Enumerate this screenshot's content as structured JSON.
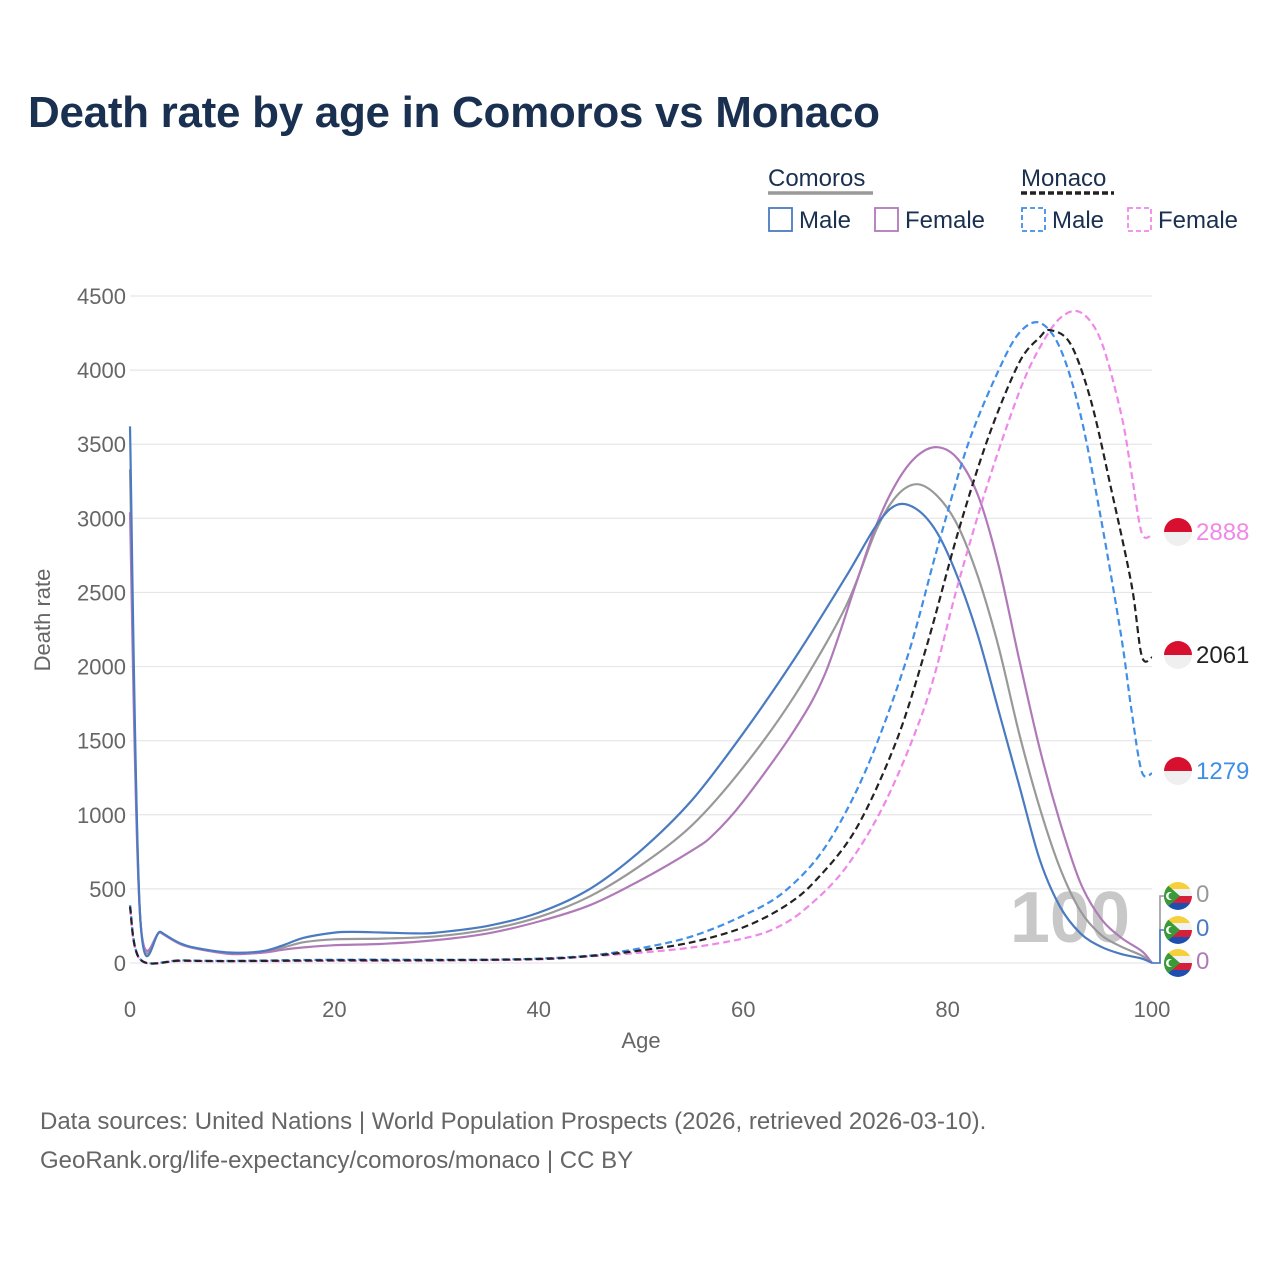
{
  "chart_data": {
    "type": "line",
    "title": "Death rate by age in Comoros vs Monaco",
    "xlabel": "Age",
    "ylabel": "Death rate",
    "xlim": [
      0,
      100
    ],
    "ylim": [
      0,
      4500
    ],
    "xticks": [
      0,
      20,
      40,
      60,
      80,
      100
    ],
    "yticks": [
      0,
      500,
      1000,
      1500,
      2000,
      2500,
      3000,
      3500,
      4000,
      4500
    ],
    "grid": true,
    "legend": {
      "groups": [
        {
          "name": "Comoros",
          "items": [
            "Male",
            "Female"
          ],
          "style": "solid"
        },
        {
          "name": "Monaco",
          "items": [
            "Male",
            "Female"
          ],
          "style": "dashed"
        }
      ]
    },
    "year_watermark": "100",
    "series": [
      {
        "name": "Comoros Male",
        "country": "Comoros",
        "sex": "Male",
        "color": "#4a7bc0",
        "dash": false,
        "points": [
          [
            0,
            3620
          ],
          [
            1,
            310
          ],
          [
            3,
            210
          ],
          [
            5,
            130
          ],
          [
            7,
            95
          ],
          [
            10,
            70
          ],
          [
            13,
            80
          ],
          [
            15,
            120
          ],
          [
            17,
            170
          ],
          [
            20,
            205
          ],
          [
            22,
            210
          ],
          [
            25,
            205
          ],
          [
            28,
            200
          ],
          [
            30,
            205
          ],
          [
            35,
            250
          ],
          [
            40,
            340
          ],
          [
            45,
            500
          ],
          [
            50,
            760
          ],
          [
            55,
            1100
          ],
          [
            60,
            1550
          ],
          [
            65,
            2050
          ],
          [
            70,
            2600
          ],
          [
            73,
            2950
          ],
          [
            75,
            3090
          ],
          [
            77,
            3060
          ],
          [
            79,
            2900
          ],
          [
            81,
            2600
          ],
          [
            83,
            2200
          ],
          [
            85,
            1700
          ],
          [
            87,
            1200
          ],
          [
            89,
            700
          ],
          [
            91,
            380
          ],
          [
            93,
            200
          ],
          [
            95,
            110
          ],
          [
            97,
            60
          ],
          [
            99,
            30
          ],
          [
            100,
            0
          ]
        ],
        "end_value": "0"
      },
      {
        "name": "Comoros Female",
        "country": "Comoros",
        "sex": "Female",
        "color": "#b07ab8",
        "dash": false,
        "points": [
          [
            0,
            3040
          ],
          [
            1,
            305
          ],
          [
            3,
            205
          ],
          [
            5,
            125
          ],
          [
            7,
            90
          ],
          [
            10,
            60
          ],
          [
            13,
            70
          ],
          [
            15,
            90
          ],
          [
            17,
            105
          ],
          [
            20,
            120
          ],
          [
            25,
            130
          ],
          [
            30,
            155
          ],
          [
            35,
            200
          ],
          [
            40,
            280
          ],
          [
            45,
            390
          ],
          [
            50,
            560
          ],
          [
            55,
            760
          ],
          [
            57,
            860
          ],
          [
            60,
            1090
          ],
          [
            65,
            1570
          ],
          [
            68,
            1950
          ],
          [
            71,
            2550
          ],
          [
            73,
            2950
          ],
          [
            75,
            3240
          ],
          [
            77,
            3420
          ],
          [
            79,
            3480
          ],
          [
            81,
            3400
          ],
          [
            83,
            3150
          ],
          [
            85,
            2680
          ],
          [
            87,
            2050
          ],
          [
            89,
            1450
          ],
          [
            91,
            950
          ],
          [
            93,
            540
          ],
          [
            95,
            300
          ],
          [
            97,
            170
          ],
          [
            99,
            80
          ],
          [
            100,
            0
          ]
        ],
        "end_value": "0"
      },
      {
        "name": "Comoros Total",
        "country": "Comoros",
        "sex": "Total",
        "color": "#999999",
        "dash": false,
        "points": [
          [
            0,
            3330
          ],
          [
            1,
            308
          ],
          [
            3,
            208
          ],
          [
            5,
            128
          ],
          [
            7,
            92
          ],
          [
            10,
            65
          ],
          [
            13,
            75
          ],
          [
            15,
            105
          ],
          [
            17,
            140
          ],
          [
            20,
            160
          ],
          [
            25,
            165
          ],
          [
            30,
            180
          ],
          [
            35,
            225
          ],
          [
            40,
            310
          ],
          [
            45,
            450
          ],
          [
            50,
            660
          ],
          [
            55,
            930
          ],
          [
            60,
            1320
          ],
          [
            65,
            1800
          ],
          [
            70,
            2400
          ],
          [
            73,
            2920
          ],
          [
            75,
            3150
          ],
          [
            77,
            3230
          ],
          [
            79,
            3150
          ],
          [
            81,
            2950
          ],
          [
            83,
            2600
          ],
          [
            85,
            2130
          ],
          [
            87,
            1550
          ],
          [
            89,
            1050
          ],
          [
            91,
            640
          ],
          [
            93,
            350
          ],
          [
            95,
            190
          ],
          [
            97,
            110
          ],
          [
            99,
            50
          ],
          [
            100,
            0
          ]
        ],
        "end_value": ""
      },
      {
        "name": "Monaco Male",
        "country": "Monaco",
        "sex": "Male",
        "color": "#3f8ee8",
        "dash": true,
        "points": [
          [
            0,
            390
          ],
          [
            1,
            25
          ],
          [
            5,
            18
          ],
          [
            10,
            15
          ],
          [
            20,
            22
          ],
          [
            30,
            22
          ],
          [
            35,
            22
          ],
          [
            40,
            30
          ],
          [
            45,
            50
          ],
          [
            50,
            100
          ],
          [
            55,
            180
          ],
          [
            60,
            320
          ],
          [
            64,
            480
          ],
          [
            68,
            780
          ],
          [
            72,
            1300
          ],
          [
            76,
            2050
          ],
          [
            79,
            2800
          ],
          [
            82,
            3500
          ],
          [
            85,
            4000
          ],
          [
            87,
            4250
          ],
          [
            89,
            4320
          ],
          [
            91,
            4150
          ],
          [
            93,
            3700
          ],
          [
            95,
            3000
          ],
          [
            97,
            2200
          ],
          [
            98,
            1700
          ],
          [
            99,
            1290
          ],
          [
            100,
            1279
          ]
        ],
        "end_value": "1279"
      },
      {
        "name": "Monaco Female",
        "country": "Monaco",
        "sex": "Female",
        "color": "#f088e8",
        "dash": true,
        "points": [
          [
            0,
            370
          ],
          [
            1,
            22
          ],
          [
            5,
            14
          ],
          [
            10,
            12
          ],
          [
            20,
            14
          ],
          [
            30,
            16
          ],
          [
            40,
            25
          ],
          [
            45,
            45
          ],
          [
            50,
            70
          ],
          [
            55,
            105
          ],
          [
            60,
            165
          ],
          [
            63,
            230
          ],
          [
            66,
            360
          ],
          [
            70,
            640
          ],
          [
            74,
            1100
          ],
          [
            78,
            1780
          ],
          [
            81,
            2550
          ],
          [
            84,
            3250
          ],
          [
            87,
            3850
          ],
          [
            89,
            4150
          ],
          [
            91,
            4350
          ],
          [
            93,
            4390
          ],
          [
            95,
            4200
          ],
          [
            97,
            3700
          ],
          [
            98,
            3300
          ],
          [
            99,
            2900
          ],
          [
            100,
            2888
          ]
        ],
        "end_value": "2888"
      },
      {
        "name": "Monaco Total",
        "country": "Monaco",
        "sex": "Total",
        "color": "#222222",
        "dash": true,
        "points": [
          [
            0,
            380
          ],
          [
            1,
            24
          ],
          [
            5,
            16
          ],
          [
            10,
            13
          ],
          [
            20,
            18
          ],
          [
            30,
            19
          ],
          [
            40,
            27
          ],
          [
            45,
            47
          ],
          [
            50,
            85
          ],
          [
            55,
            140
          ],
          [
            60,
            240
          ],
          [
            64,
            380
          ],
          [
            67,
            550
          ],
          [
            71,
            900
          ],
          [
            75,
            1500
          ],
          [
            78,
            2150
          ],
          [
            81,
            2900
          ],
          [
            84,
            3550
          ],
          [
            87,
            4050
          ],
          [
            89,
            4220
          ],
          [
            90,
            4270
          ],
          [
            92,
            4180
          ],
          [
            94,
            3800
          ],
          [
            96,
            3200
          ],
          [
            98,
            2550
          ],
          [
            99,
            2070
          ],
          [
            100,
            2061
          ]
        ],
        "end_value": "2061"
      }
    ],
    "colors": {
      "title": "#1a3050",
      "axis_text": "#666666",
      "grid": "#e6e6e6",
      "watermark": "#c8c8c8"
    }
  },
  "footer": {
    "line1": "Data sources: United Nations | World Population Prospects (2026, retrieved 2026-03-10).",
    "line2": "GeoRank.org/life-expectancy/comoros/monaco | CC BY"
  }
}
